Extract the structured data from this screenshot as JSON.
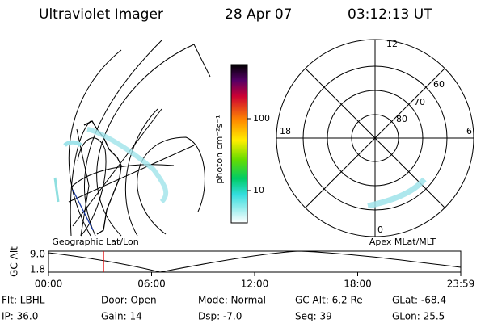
{
  "header": {
    "instrument": "Ultraviolet Imager",
    "date": "28 Apr 07",
    "time": "03:12:13 UT"
  },
  "colorbar": {
    "label": "photon cm⁻²s⁻¹",
    "ticks": [
      "100",
      "10"
    ]
  },
  "polar": {
    "mlt_labels": [
      "12",
      "18",
      "6",
      "0"
    ],
    "lat_labels": [
      "60",
      "70",
      "80"
    ]
  },
  "panel_labels": {
    "left": "Geographic Lat/Lon",
    "right": "Apex MLat/MLT"
  },
  "timeline": {
    "ylabel": "GC Alt",
    "yticks": [
      "9.0",
      "1.8"
    ],
    "xticks": [
      "00:00",
      "06:00",
      "12:00",
      "18:00",
      "23:59"
    ]
  },
  "footer": {
    "rows": [
      [
        "Flt: LBHL",
        "Door: Open",
        "Mode: Normal",
        "GC Alt: 6.2 Re",
        "GLat: -68.4"
      ],
      [
        "IP: 36.0",
        "Gain: 14",
        "Dsp: -7.0",
        "Seq: 39",
        "GLon: 25.5"
      ]
    ]
  }
}
